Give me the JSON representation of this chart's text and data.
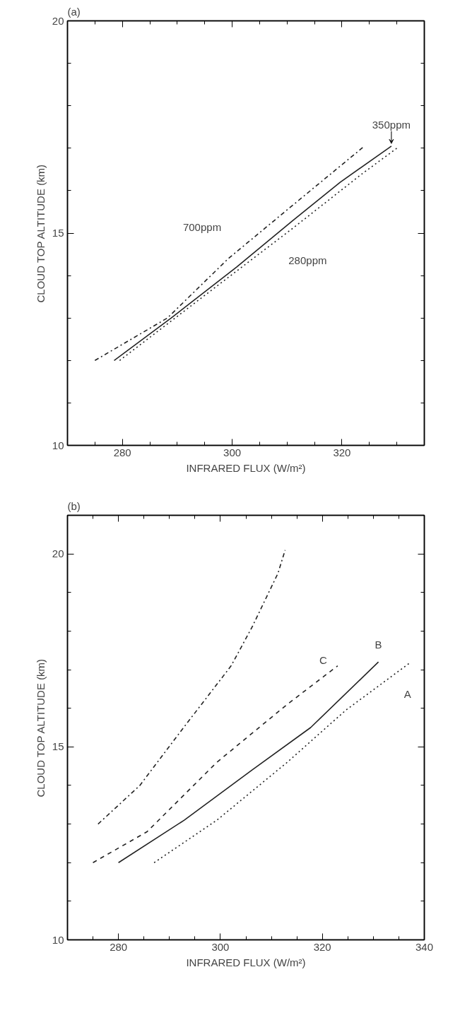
{
  "chart_data": [
    {
      "type": "line",
      "title": "(a)",
      "xlabel": "INFRARED FLUX (W/m²)",
      "ylabel": "CLOUD TOP ALTITUDE (km)",
      "xlim": [
        270,
        335
      ],
      "ylim": [
        10,
        20
      ],
      "xticks": [
        {
          "value": 275,
          "label": null
        },
        280,
        {
          "value": 285,
          "label": null
        },
        {
          "value": 290,
          "label": null
        },
        {
          "value": 295,
          "label": null
        },
        300,
        {
          "value": 305,
          "label": null
        },
        {
          "value": 310,
          "label": null
        },
        {
          "value": 315,
          "label": null
        },
        320,
        {
          "value": 325,
          "label": null
        },
        {
          "value": 330,
          "label": null
        }
      ],
      "yticks": [
        10,
        {
          "value": 11,
          "label": null
        },
        {
          "value": 12,
          "label": null
        },
        {
          "value": 13,
          "label": null
        },
        {
          "value": 14,
          "label": null
        },
        15,
        {
          "value": 16,
          "label": null
        },
        {
          "value": 17,
          "label": null
        },
        {
          "value": 18,
          "label": null
        },
        {
          "value": 19,
          "label": null
        },
        20
      ],
      "grid": false,
      "series": [
        {
          "name": "700ppm",
          "color": "#222222",
          "line_style": "dashdot",
          "x": [
            275,
            288.2,
            299.3,
            310.5,
            324.1
          ],
          "values": [
            12.0,
            13.0,
            14.4,
            15.6,
            17.05
          ]
        },
        {
          "name": "350ppm",
          "color": "#222222",
          "line_style": "solid",
          "x": [
            278.5,
            288.9,
            300.8,
            311.1,
            319.7,
            329
          ],
          "values": [
            12.0,
            13.0,
            14.2,
            15.3,
            16.2,
            17.05
          ]
        },
        {
          "name": "280ppm",
          "color": "#222222",
          "line_style": "dotted",
          "x": [
            279.5,
            297.7,
            310.9,
            323.7,
            330
          ],
          "values": [
            12.0,
            13.8,
            15.1,
            16.4,
            17.0
          ]
        }
      ]
    },
    {
      "type": "line",
      "title": "(b)",
      "xlabel": "INFRARED FLUX (W/m²)",
      "ylabel": "CLOUD TOP ALTITUDE (km)",
      "xlim": [
        270,
        340
      ],
      "ylim": [
        10,
        21
      ],
      "xticks": [
        {
          "value": 275,
          "label": null
        },
        280,
        {
          "value": 285,
          "label": null
        },
        {
          "value": 290,
          "label": null
        },
        {
          "value": 295,
          "label": null
        },
        300,
        {
          "value": 305,
          "label": null
        },
        {
          "value": 310,
          "label": null
        },
        {
          "value": 315,
          "label": null
        },
        320,
        {
          "value": 325,
          "label": null
        },
        {
          "value": 330,
          "label": null
        },
        {
          "value": 335,
          "label": null
        },
        340
      ],
      "yticks": [
        10,
        {
          "value": 11,
          "label": null
        },
        {
          "value": 12,
          "label": null
        },
        {
          "value": 13,
          "label": null
        },
        {
          "value": 14,
          "label": null
        },
        15,
        {
          "value": 16,
          "label": null
        },
        {
          "value": 17,
          "label": null
        },
        {
          "value": 18,
          "label": null
        },
        {
          "value": 19,
          "label": null
        },
        20
      ],
      "grid": false,
      "series": [
        {
          "color": "#222222",
          "line_style": "dashdot",
          "x": [
            276,
            284.2,
            292.2,
            302.1,
            306.2,
            311.3,
            312.7
          ],
          "values": [
            13.0,
            14.0,
            15.4,
            17.1,
            18.1,
            19.5,
            20.1
          ]
        },
        {
          "name": "C",
          "color": "#222222",
          "line_style": "dashed",
          "x": [
            275,
            285.6,
            299.3,
            313.1,
            323.0
          ],
          "values": [
            12.0,
            12.8,
            14.6,
            16.1,
            17.1
          ]
        },
        {
          "name": "B",
          "color": "#222222",
          "line_style": "solid",
          "x": [
            280,
            292.9,
            306.2,
            317.7,
            331.0
          ],
          "values": [
            12.0,
            13.1,
            14.4,
            15.5,
            17.2
          ]
        },
        {
          "name": "A",
          "color": "#222222",
          "line_style": "dotted",
          "x": [
            287,
            299.3,
            313.1,
            324.6,
            337.4
          ],
          "values": [
            12.0,
            13.1,
            14.6,
            15.95,
            17.2
          ]
        }
      ]
    }
  ]
}
